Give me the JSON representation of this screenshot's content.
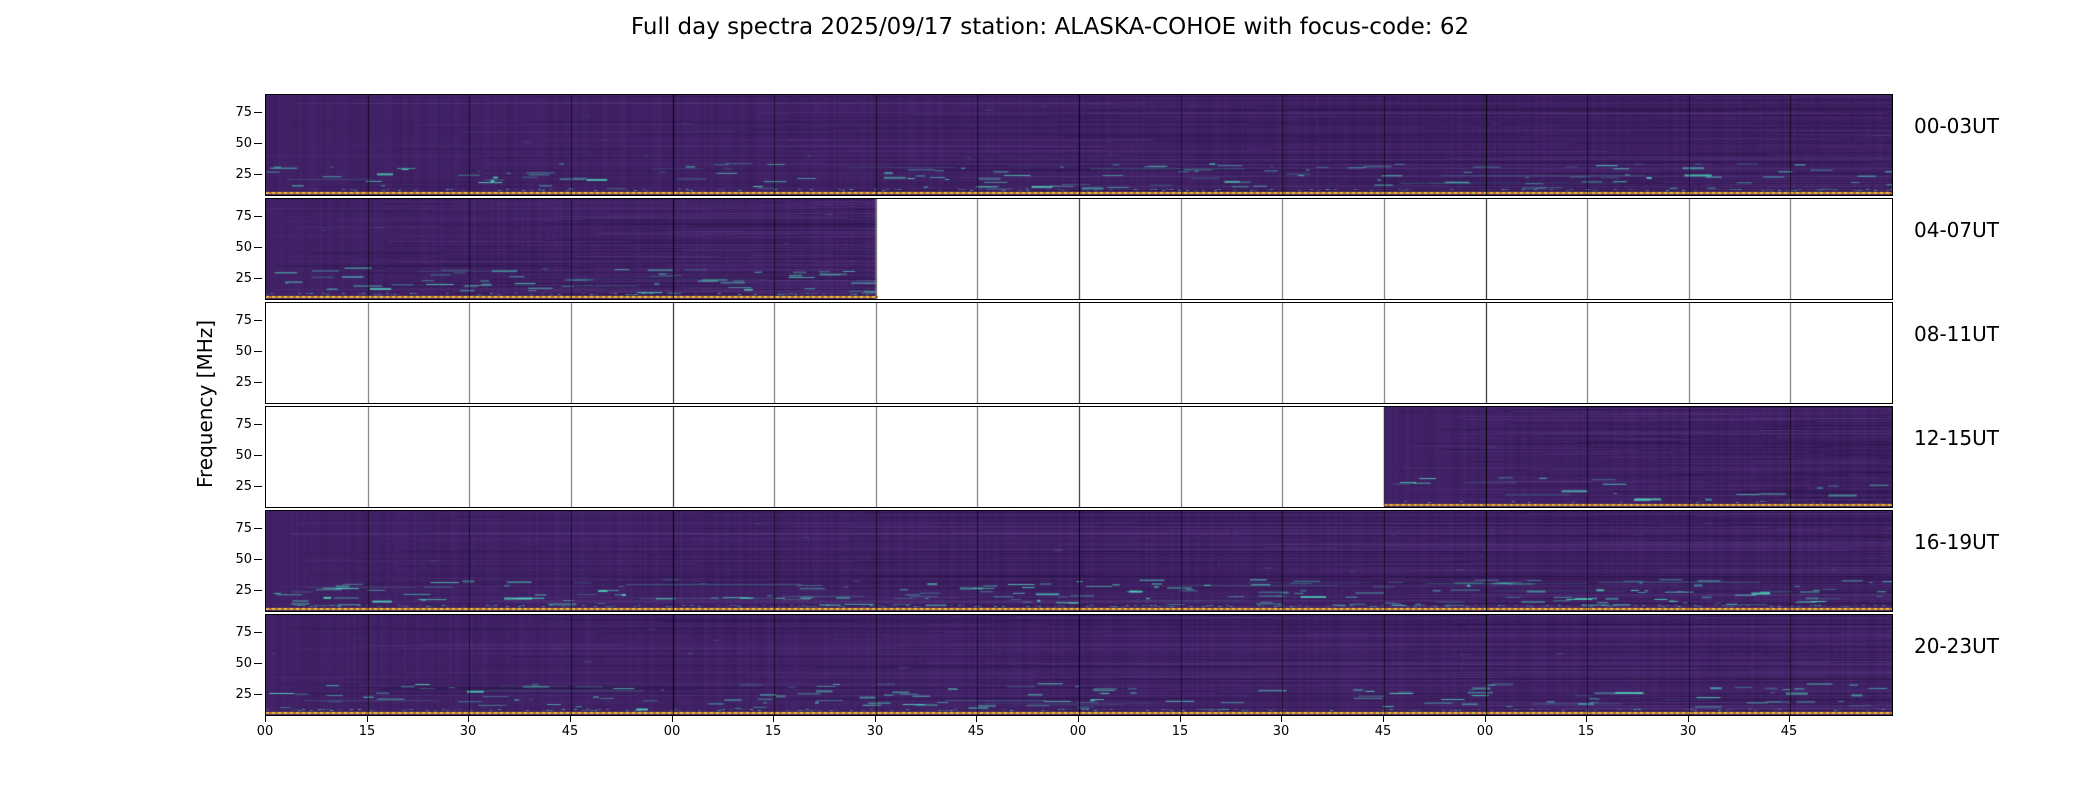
{
  "title": "Full day spectra 2025/09/17 station: ALASKA-COHOE with focus-code: 62",
  "chart_data": {
    "type": "heatmap",
    "title": "Full day spectra 2025/09/17 station: ALASKA-COHOE with focus-code: 62",
    "ylabel": "Frequency [MHz]",
    "y_tick_labels": [
      "75",
      "50",
      "25"
    ],
    "y_range_mhz": [
      10,
      90
    ],
    "x_unit": "minutes within each hour",
    "x_tick_labels": [
      "00",
      "15",
      "30",
      "45",
      "00",
      "15",
      "30",
      "45",
      "00",
      "15",
      "30",
      "45",
      "00",
      "15",
      "30",
      "45"
    ],
    "segments_per_row": 16,
    "segment_minutes": 15,
    "rows": [
      {
        "label": "00-03UT",
        "coverage": [
          [
            0,
            16
          ]
        ],
        "streak_density": 0.7
      },
      {
        "label": "04-07UT",
        "coverage": [
          [
            0,
            6
          ]
        ],
        "streak_density": 0.85
      },
      {
        "label": "08-11UT",
        "coverage": [],
        "streak_density": 0
      },
      {
        "label": "12-15UT",
        "coverage": [
          [
            11,
            16
          ]
        ],
        "streak_density": 0.35
      },
      {
        "label": "16-19UT",
        "coverage": [
          [
            0,
            16
          ]
        ],
        "streak_density": 1.0
      },
      {
        "label": "20-23UT",
        "coverage": [
          [
            0,
            16
          ]
        ],
        "streak_density": 0.7
      }
    ],
    "colors": {
      "spectrogram_base": "#432369",
      "streak_teal": "#40e0b9",
      "bottom_dot_yellow": "#ecc93f",
      "bottom_dot_orange": "#cf7a2b",
      "empty_panel": "#ffffff",
      "frame": "#000000"
    }
  }
}
